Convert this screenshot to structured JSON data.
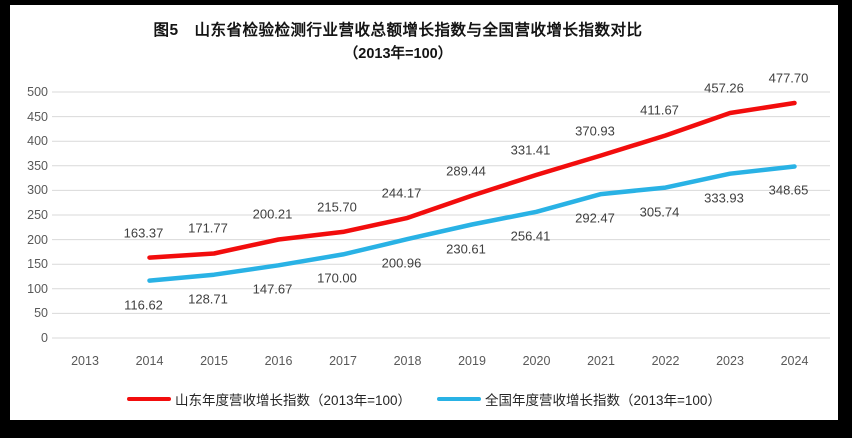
{
  "title": "图5　山东省检验检测行业营收总额增长指数与全国营收增长指数对比",
  "subtitle": "（2013年=100）",
  "colors": {
    "shandong": "#f20d0d",
    "national": "#29b2e5",
    "grid": "#d9d9d9",
    "axis_text": "#595959",
    "label_text": "#3f3f3f",
    "frame": "#000000",
    "panel": "#ffffff"
  },
  "chart_data": {
    "type": "line",
    "title": "图5　山东省检验检测行业营收总额增长指数与全国营收增长指数对比（2013年=100）",
    "x": [
      2013,
      2014,
      2015,
      2016,
      2017,
      2018,
      2019,
      2020,
      2021,
      2022,
      2023,
      2024
    ],
    "xlabel": "",
    "ylabel": "",
    "ylim": [
      0,
      500
    ],
    "y_ticks": [
      0,
      50,
      100,
      150,
      200,
      250,
      300,
      350,
      400,
      450,
      500
    ],
    "grid": true,
    "legend_position": "bottom",
    "series": [
      {
        "name": "山东年度营收增长指数（2013年=100）",
        "color_key": "shandong",
        "x_start": 2014,
        "label_side": "above",
        "values": [
          163.37,
          171.77,
          200.21,
          215.7,
          244.17,
          289.44,
          331.41,
          370.93,
          411.67,
          457.26,
          477.7
        ],
        "labels": [
          "163.37",
          "171.77",
          "200.21",
          "215.70",
          "244.17",
          "289.44",
          "331.41",
          "370.93",
          "411.67",
          "457.26",
          "477.70"
        ]
      },
      {
        "name": "全国年度营收增长指数（2013年=100）",
        "color_key": "national",
        "x_start": 2014,
        "label_side": "below",
        "values": [
          116.62,
          128.71,
          147.67,
          170.0,
          200.96,
          230.61,
          256.41,
          292.47,
          305.74,
          333.93,
          348.65
        ],
        "labels": [
          "116.62",
          "128.71",
          "147.67",
          "170.00",
          "200.96",
          "230.61",
          "256.41",
          "292.47",
          "305.74",
          "333.93",
          "348.65"
        ]
      }
    ]
  }
}
